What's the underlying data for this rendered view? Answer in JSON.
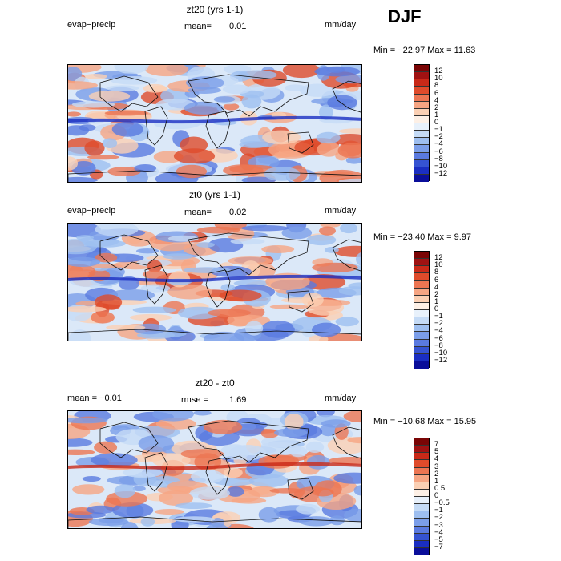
{
  "season": "DJF",
  "palette": {
    "pos": [
      "#fdf0e6",
      "#fbd0b4",
      "#f6a583",
      "#ec7552",
      "#df4b2b",
      "#c92918",
      "#a01212",
      "#7a0505"
    ],
    "neg": [
      "#e8f1fb",
      "#c5dbf6",
      "#9ebff0",
      "#7b9ee9",
      "#5a7ae0",
      "#3553d2",
      "#1a2ec2",
      "#0a0e9a"
    ]
  },
  "panels": [
    {
      "title": "zt20 (yrs 1-1)",
      "left_label": "evap−precip",
      "mean_label": "mean=",
      "mean_value": "0.01",
      "units": "mm/day",
      "minmax": "Min = −22.97 Max =   11.63",
      "colorbar_labels": [
        "12",
        "10",
        "8",
        "6",
        "4",
        "2",
        "1",
        "0",
        "−1",
        "−2",
        "−4",
        "−6",
        "−8",
        "−10",
        "−12"
      ]
    },
    {
      "title": "zt0 (yrs 1-1)",
      "left_label": "evap−precip",
      "mean_label": "mean=",
      "mean_value": "0.02",
      "units": "mm/day",
      "minmax": "Min = −23.40 Max =    9.97",
      "colorbar_labels": [
        "12",
        "10",
        "8",
        "6",
        "4",
        "2",
        "1",
        "0",
        "−1",
        "−2",
        "−4",
        "−6",
        "−8",
        "−10",
        "−12"
      ]
    },
    {
      "title": "zt20 - zt0",
      "left_label": "mean =   −0.01",
      "mean_label": "rmse =",
      "mean_value": "1.69",
      "units": "mm/day",
      "minmax": "Min = −10.68 Max =   15.95",
      "colorbar_labels": [
        "7",
        "5",
        "4",
        "3",
        "2",
        "1",
        "0.5",
        "0",
        "−0.5",
        "−1",
        "−2",
        "−3",
        "−4",
        "−5",
        "−7"
      ]
    }
  ]
}
